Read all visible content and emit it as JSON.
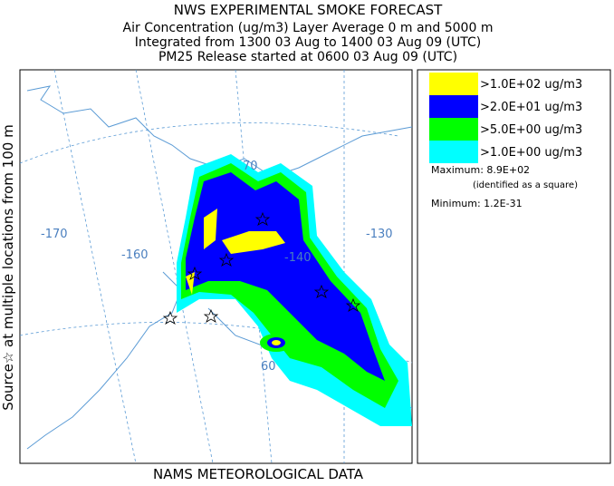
{
  "header": {
    "title_lines": [
      "NWS EXPERIMENTAL SMOKE FORECAST",
      "Air Concentration (ug/m3) Layer Average    0 m and  5000 m",
      "Integrated from 1300 03 Aug to 1400 03 Aug 09 (UTC)",
      "PM25 Release started at 0600 03 Aug 09 (UTC)"
    ]
  },
  "side_label": "Source☆ at multiple locations from  100 m",
  "footer": "NAMS METEOROLOGICAL DATA",
  "legend": {
    "items": [
      {
        "label": ">1.0E+02 ug/m3",
        "color": "#ffff00"
      },
      {
        "label": ">2.0E+01 ug/m3",
        "color": "#0000ff"
      },
      {
        "label": ">5.0E+00 ug/m3",
        "color": "#00ff00"
      },
      {
        "label": ">1.0E+00 ug/m3",
        "color": "#00ffff"
      }
    ],
    "maximum": "Maximum: 8.9E+02",
    "maximum_note": "(identified as a square)",
    "minimum": "Minimum: 1.2E-31"
  },
  "map": {
    "grid_labels": [
      "-170",
      "-160",
      "-140",
      "-130",
      "70",
      "60"
    ]
  }
}
